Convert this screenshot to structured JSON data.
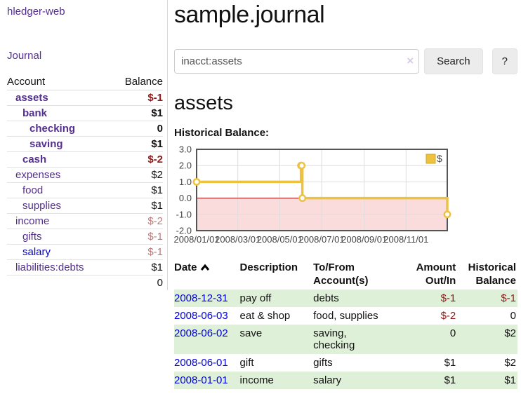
{
  "sidebar": {
    "brand": "hledger-web",
    "nav": {
      "journal": "Journal"
    },
    "accounts": {
      "col_account": "Account",
      "col_balance": "Balance",
      "rows": [
        {
          "name": "assets",
          "indent": 1,
          "emphasized": true,
          "balance": "$-1",
          "tone": "neg"
        },
        {
          "name": "bank",
          "indent": 2,
          "emphasized": true,
          "balance": "$1",
          "tone": "pos"
        },
        {
          "name": "checking",
          "indent": 3,
          "emphasized": true,
          "balance": "0",
          "tone": "pos"
        },
        {
          "name": "saving",
          "indent": 3,
          "emphasized": true,
          "balance": "$1",
          "tone": "pos"
        },
        {
          "name": "cash",
          "indent": 2,
          "emphasized": true,
          "balance": "$-2",
          "tone": "neg"
        },
        {
          "name": "expenses",
          "indent": 1,
          "emphasized": false,
          "balance": "$2",
          "tone": "pos"
        },
        {
          "name": "food",
          "indent": 2,
          "emphasized": false,
          "balance": "$1",
          "tone": "pos"
        },
        {
          "name": "supplies",
          "indent": 2,
          "emphasized": false,
          "balance": "$1",
          "tone": "pos"
        },
        {
          "name": "income",
          "indent": 1,
          "emphasized": false,
          "balance": "$-2",
          "tone": "neg-muted"
        },
        {
          "name": "gifts",
          "indent": 2,
          "emphasized": false,
          "balance": "$-1",
          "tone": "neg-muted"
        },
        {
          "name": "salary",
          "indent": 2,
          "emphasized": false,
          "balance": "$-1",
          "tone": "neg-muted",
          "unvisited": true
        },
        {
          "name": "liabilities:debts",
          "indent": 1,
          "emphasized": false,
          "balance": "$1",
          "tone": "pos"
        }
      ],
      "total": "0"
    }
  },
  "header": {
    "title": "sample.journal"
  },
  "search": {
    "query": "inacct:assets",
    "clear_icon": "×",
    "search_label": "Search",
    "help_label": "?"
  },
  "account_page": {
    "heading": "assets",
    "chart_label": "Historical Balance:"
  },
  "chart_data": {
    "type": "line",
    "title": "Historical Balance:",
    "step": true,
    "series": [
      {
        "name": "$",
        "color": "#edc240",
        "points": [
          [
            "2008-01-01",
            1
          ],
          [
            "2008-06-01",
            2
          ],
          [
            "2008-06-02",
            2
          ],
          [
            "2008-06-03",
            0
          ],
          [
            "2008-12-31",
            -1
          ]
        ]
      }
    ],
    "x_ticks": [
      "2008/01/01",
      "2008/03/01",
      "2008/05/01",
      "2008/07/01",
      "2008/09/01",
      "2008/11/01"
    ],
    "y_ticks": [
      3.0,
      2.0,
      1.0,
      0.0,
      -1.0,
      -2.0
    ],
    "xlim": [
      "2008-01-01",
      "2008-12-31"
    ],
    "ylim": [
      -2,
      3
    ],
    "grid": true,
    "legend_position": "top-right",
    "negative_region_shaded": true,
    "zero_line_color": "#a40000",
    "negative_shade_color": "#fbdcdc"
  },
  "register": {
    "columns": {
      "date": "Date",
      "description": "Description",
      "tofrom_l1": "To/From",
      "tofrom_l2": "Account(s)",
      "amount_l1": "Amount",
      "amount_l2": "Out/In",
      "balance_l1": "Historical",
      "balance_l2": "Balance"
    },
    "rows": [
      {
        "date": "2008-12-31",
        "description": "pay off",
        "accounts": "debts",
        "amount": "$-1",
        "amount_neg": true,
        "balance": "$-1",
        "balance_neg": true
      },
      {
        "date": "2008-06-03",
        "description": "eat & shop",
        "accounts": "food, supplies",
        "amount": "$-2",
        "amount_neg": true,
        "balance": "0",
        "balance_neg": false
      },
      {
        "date": "2008-06-02",
        "description": "save",
        "accounts": "saving, checking",
        "amount": "0",
        "amount_neg": false,
        "balance": "$2",
        "balance_neg": false
      },
      {
        "date": "2008-06-01",
        "description": "gift",
        "accounts": "gifts",
        "amount": "$1",
        "amount_neg": false,
        "balance": "$2",
        "balance_neg": false
      },
      {
        "date": "2008-01-01",
        "description": "income",
        "accounts": "salary",
        "amount": "$1",
        "amount_neg": false,
        "balance": "$1",
        "balance_neg": false
      }
    ]
  },
  "colors": {
    "link_purple": "#552e91",
    "link_blue": "#0000dd",
    "negative": "#8b1a1a",
    "negative_muted": "#bd7a7a",
    "row_stripe_green": "#dff0d8",
    "chart_series": "#edc240",
    "chart_zero_line": "#a40000",
    "chart_negative_shade": "#fbdcdc"
  }
}
